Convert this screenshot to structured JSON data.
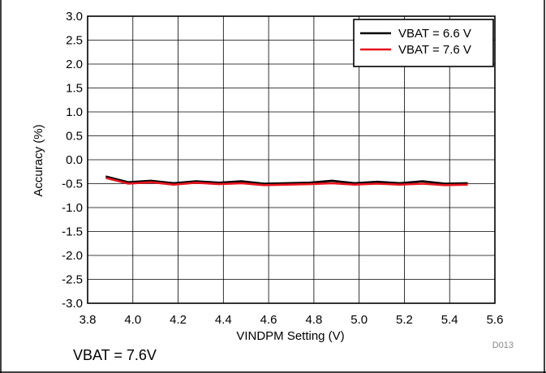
{
  "chart_data": {
    "type": "line",
    "xlabel": "VINDPM Setting (V)",
    "ylabel": "Accuracy (%)",
    "xlim": [
      3.8,
      5.6
    ],
    "ylim": [
      -3.0,
      3.0
    ],
    "xticks": [
      "3.8",
      "4.0",
      "4.2",
      "4.4",
      "4.6",
      "4.8",
      "5.0",
      "5.2",
      "5.4",
      "5.6"
    ],
    "yticks": [
      "3.0",
      "2.5",
      "2.0",
      "1.5",
      "1.0",
      "0.5",
      "0.0",
      "-0.5",
      "-1.0",
      "-1.5",
      "-2.0",
      "-2.5",
      "-3.0"
    ],
    "grid": true,
    "legend_position": "top-right",
    "x": [
      3.88,
      3.98,
      4.08,
      4.18,
      4.28,
      4.38,
      4.48,
      4.58,
      4.68,
      4.78,
      4.88,
      4.98,
      5.08,
      5.18,
      5.28,
      5.38,
      5.48
    ],
    "series": [
      {
        "name": "VBAT = 6.6 V",
        "color": "#000000",
        "values": [
          -0.35,
          -0.47,
          -0.44,
          -0.49,
          -0.45,
          -0.48,
          -0.45,
          -0.5,
          -0.49,
          -0.48,
          -0.44,
          -0.49,
          -0.46,
          -0.49,
          -0.45,
          -0.5,
          -0.49
        ]
      },
      {
        "name": "VBAT = 7.6 V",
        "color": "#e8141c",
        "values": [
          -0.38,
          -0.5,
          -0.47,
          -0.52,
          -0.48,
          -0.51,
          -0.49,
          -0.53,
          -0.52,
          -0.51,
          -0.49,
          -0.52,
          -0.5,
          -0.52,
          -0.5,
          -0.53,
          -0.52
        ]
      }
    ]
  },
  "footer": {
    "caption": "VBAT = 7.6V",
    "code": "D013"
  }
}
